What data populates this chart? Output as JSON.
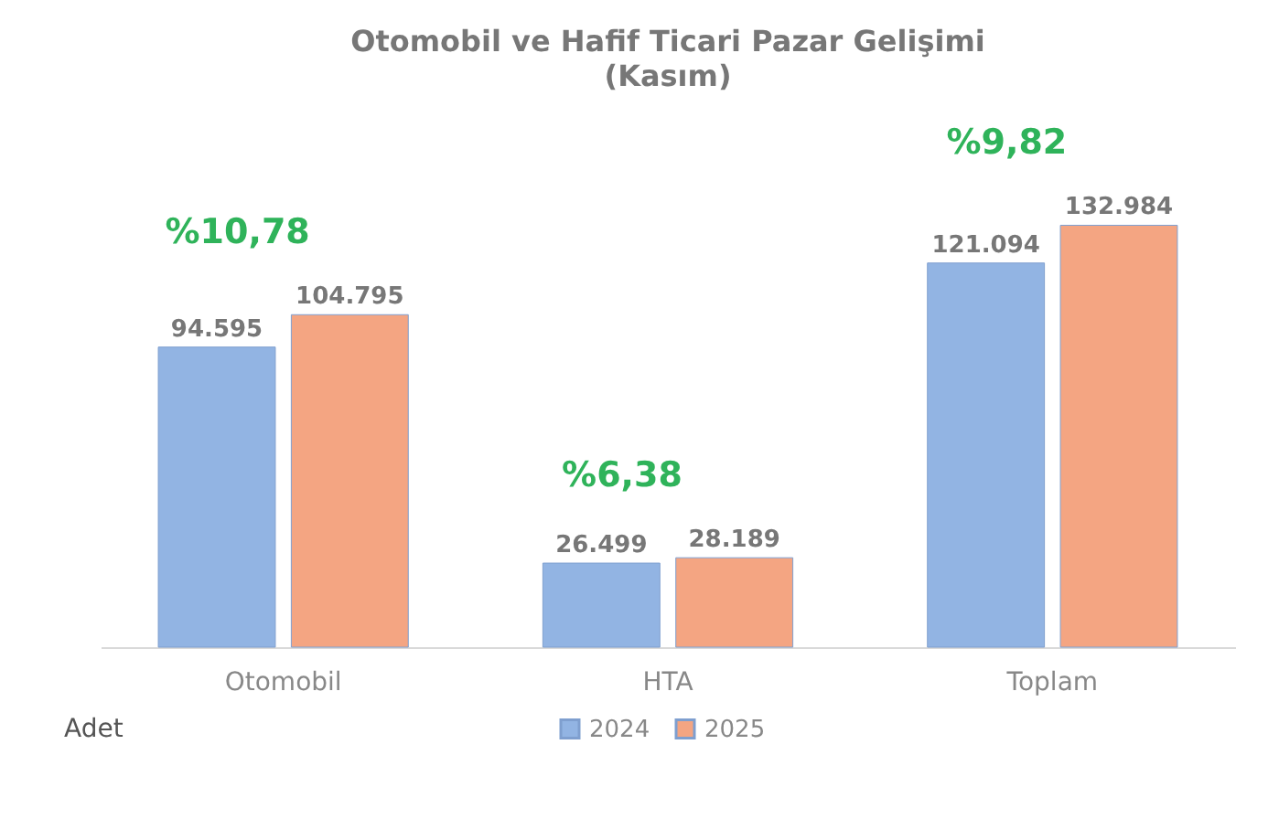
{
  "chart_data": {
    "type": "bar",
    "title": "Otomobil ve Hafif Ticari Pazar Gelişimi",
    "subtitle": "(Kasım)",
    "categories": [
      "Otomobil",
      "HTA",
      "Toplam"
    ],
    "series": [
      {
        "name": "2024",
        "color": "#92b4e3",
        "values": [
          94595,
          26499,
          121094
        ],
        "value_labels": [
          "94.595",
          "26.499",
          "121.094"
        ]
      },
      {
        "name": "2025",
        "color": "#f4a582",
        "values": [
          104795,
          28189,
          132984
        ],
        "value_labels": [
          "104.795",
          "28.189",
          "132.984"
        ]
      }
    ],
    "annotations": [
      "%10,78",
      "%6,38",
      "%9,82",
      "Adet"
    ],
    "legend": "bottom",
    "grid": false
  }
}
